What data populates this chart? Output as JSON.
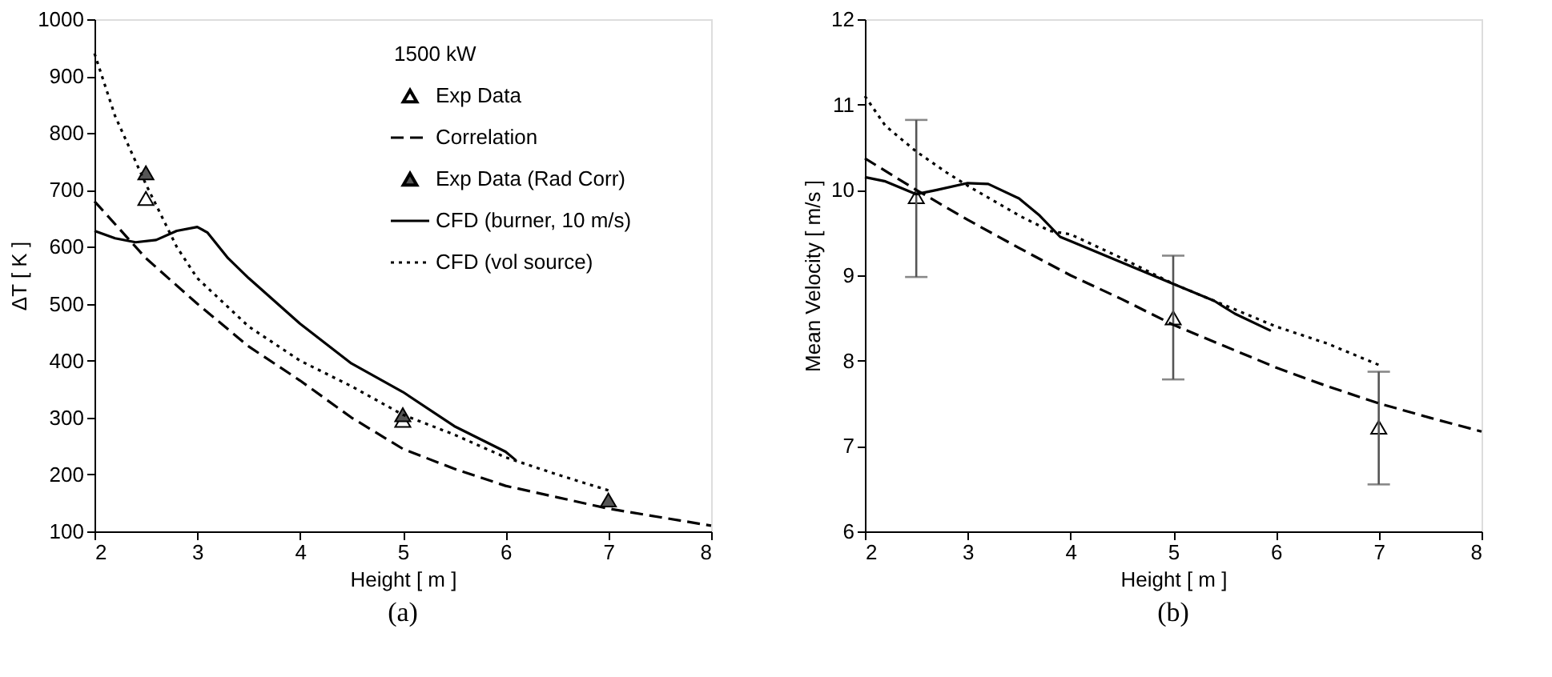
{
  "chart_data": [
    {
      "type": "line",
      "xlabel": "Height [ m ]",
      "ylabel": "ΔT [ K ]",
      "legend_title": "1500 kW",
      "legend": "top right",
      "grid": false,
      "xlim": [
        2,
        8
      ],
      "xticks": [
        2,
        3,
        4,
        5,
        6,
        7,
        8
      ],
      "ylim": [
        100,
        1000
      ],
      "yticks": [
        100,
        200,
        300,
        400,
        500,
        600,
        700,
        800,
        900,
        1000
      ],
      "annotations": [
        "(a)"
      ],
      "series": [
        {
          "name": "Exp Data",
          "type": "scatter",
          "marker": "triangle",
          "color": "#ffffff",
          "x": [
            2.5,
            5
          ],
          "values": [
            685,
            295
          ]
        },
        {
          "name": "Correlation",
          "type": "line",
          "line_style": "dashed",
          "marker": "none",
          "color": "#000000",
          "x": [
            2,
            2.5,
            3,
            3.5,
            4,
            4.5,
            5,
            5.5,
            6,
            6.5,
            7,
            7.5,
            8
          ],
          "values": [
            680,
            580,
            500,
            425,
            365,
            300,
            245,
            210,
            180,
            160,
            140,
            125,
            110
          ]
        },
        {
          "name": "Exp Data (Rad Corr)",
          "type": "scatter",
          "marker": "triangle",
          "color": "#555555",
          "x": [
            2.5,
            5,
            7
          ],
          "values": [
            730,
            305,
            155
          ]
        },
        {
          "name": "CFD (burner, 10 m/s)",
          "type": "line",
          "line_style": "solid",
          "marker": "none",
          "color": "#000000",
          "x": [
            2,
            2.2,
            2.4,
            2.6,
            2.8,
            3,
            3.1,
            3.3,
            3.5,
            4,
            4.5,
            5,
            5.5,
            6,
            6.1
          ],
          "values": [
            628,
            615,
            608,
            612,
            628,
            635,
            625,
            580,
            545,
            465,
            395,
            345,
            285,
            240,
            225
          ]
        },
        {
          "name": "CFD (vol source)",
          "type": "line",
          "line_style": "dotted",
          "marker": "none",
          "color": "#000000",
          "x": [
            2,
            2.2,
            2.5,
            2.8,
            3,
            3.5,
            4,
            4.5,
            5,
            5.5,
            6,
            6.5,
            7
          ],
          "values": [
            940,
            830,
            710,
            600,
            545,
            460,
            400,
            355,
            305,
            270,
            230,
            200,
            172
          ]
        }
      ]
    },
    {
      "type": "line",
      "xlabel": "Height [ m ]",
      "ylabel": "Mean Velocity [ m/s ]",
      "grid": false,
      "xlim": [
        2,
        8
      ],
      "xticks": [
        2,
        3,
        4,
        5,
        6,
        7,
        8
      ],
      "ylim": [
        6,
        12
      ],
      "yticks": [
        6,
        7,
        8,
        9,
        10,
        11,
        12
      ],
      "annotations": [
        "(b)"
      ],
      "series": [
        {
          "type": "scatter",
          "marker": "triangle",
          "color": "#ffffff",
          "x": [
            2.5,
            5,
            7
          ],
          "values": [
            9.92,
            8.5,
            7.22
          ],
          "errors": [
            [
              8.98,
              10.82
            ],
            [
              7.78,
              9.23
            ],
            [
              6.55,
              7.87
            ]
          ]
        },
        {
          "type": "line",
          "line_style": "dashed",
          "marker": "none",
          "color": "#000000",
          "x": [
            2,
            2.5,
            3,
            3.5,
            4,
            4.5,
            5,
            5.5,
            6,
            6.5,
            7,
            7.5,
            8
          ],
          "values": [
            10.37,
            10.0,
            9.65,
            9.32,
            9.0,
            8.72,
            8.42,
            8.17,
            7.92,
            7.7,
            7.5,
            7.33,
            7.17
          ]
        },
        {
          "type": "line",
          "line_style": "solid",
          "marker": "none",
          "color": "#000000",
          "x": [
            2,
            2.2,
            2.5,
            2.7,
            3,
            3.2,
            3.5,
            3.7,
            3.9,
            4,
            4.5,
            5,
            5.4,
            5.6,
            5.95
          ],
          "values": [
            10.15,
            10.1,
            9.95,
            10.0,
            10.08,
            10.07,
            9.9,
            9.7,
            9.45,
            9.4,
            9.15,
            8.9,
            8.7,
            8.55,
            8.35
          ]
        },
        {
          "type": "line",
          "line_style": "dotted",
          "marker": "none",
          "color": "#000000",
          "x": [
            2,
            2.2,
            2.5,
            2.8,
            3,
            3.5,
            3.8,
            4,
            4.5,
            5,
            5.5,
            6,
            6.5,
            7
          ],
          "values": [
            11.1,
            10.75,
            10.45,
            10.2,
            10.05,
            9.7,
            9.52,
            9.48,
            9.2,
            8.9,
            8.65,
            8.4,
            8.2,
            7.95
          ]
        }
      ]
    }
  ]
}
